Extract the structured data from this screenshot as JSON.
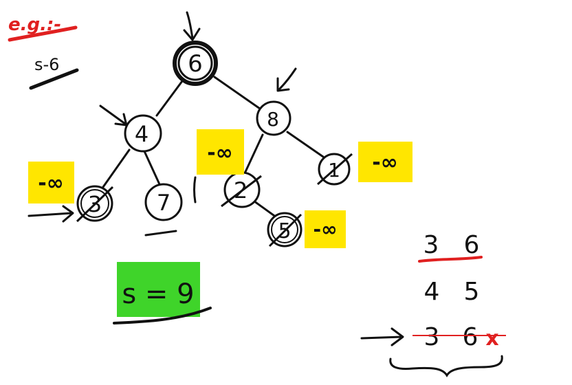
{
  "heading": {
    "label": "e.g.:-",
    "subtitle": "s-6"
  },
  "tree": {
    "nodes": [
      {
        "id": "root",
        "label": "6",
        "note": ""
      },
      {
        "id": "left",
        "label": "4",
        "note": ""
      },
      {
        "id": "right",
        "label": "8",
        "note": ""
      },
      {
        "id": "left-left",
        "label": "3",
        "note": "-∞"
      },
      {
        "id": "left-right",
        "label": "7",
        "note": ""
      },
      {
        "id": "right-left",
        "label": "2",
        "note": "-∞"
      },
      {
        "id": "right-right",
        "label": "1",
        "note": "-∞"
      },
      {
        "id": "right-left-right",
        "label": "5",
        "note": "-∞"
      }
    ]
  },
  "sum_box": {
    "text": "s = 9"
  },
  "pairs": [
    {
      "a": "3",
      "b": "6"
    },
    {
      "a": "4",
      "b": "5"
    },
    {
      "a": "3",
      "b": "6",
      "mark": "x"
    }
  ],
  "colors": {
    "ink": "#111111",
    "red": "#e02020",
    "yellow": "#ffe600",
    "green": "#3fd42a"
  }
}
